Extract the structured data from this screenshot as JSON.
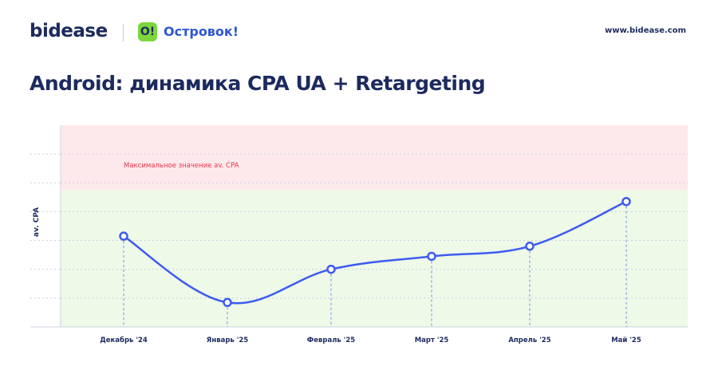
{
  "header": {
    "brand": "bidease",
    "partner_badge": "O!",
    "partner_name": "Островок!",
    "website": "www.bidease.com"
  },
  "page": {
    "title": "Android: динамика CPA UA + Retargeting"
  },
  "colors": {
    "line": "#3d5bf0",
    "red_zone": "#fde9ec",
    "green_zone": "#eef9e8",
    "annotation": "#e8344a",
    "text": "#1c2a5e"
  },
  "chart_data": {
    "type": "line",
    "categories": [
      "Декабрь '24",
      "Январь '25",
      "Февраль '25",
      "Март '25",
      "Апрель '25",
      "Май '25"
    ],
    "values": [
      63,
      17,
      40,
      49,
      56,
      87
    ],
    "ylabel": "av. CPA",
    "ylim": [
      0,
      140
    ],
    "threshold": 95,
    "annotation": "Максимальное значение av. CPA",
    "grid": true
  }
}
